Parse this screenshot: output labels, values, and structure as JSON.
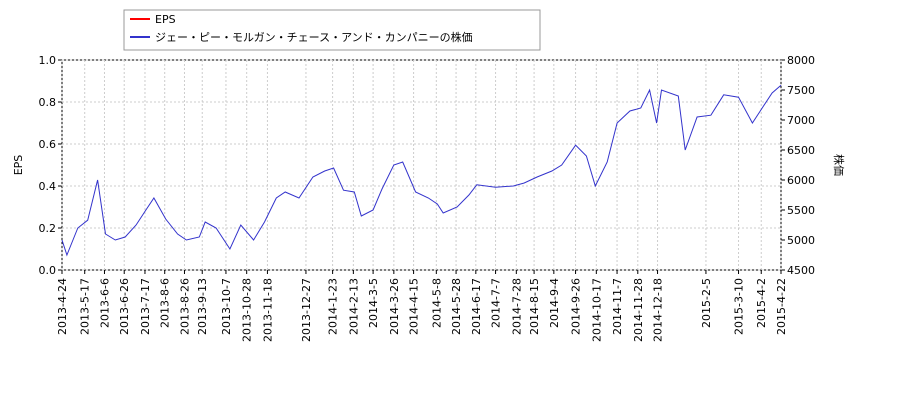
{
  "chart_data": {
    "type": "line",
    "y_label": "EPS",
    "y2_label": "株価",
    "xlim": [
      "2013-4-24",
      "2015-4-22"
    ],
    "xticks": [
      "2013-4-24",
      "2013-5-17",
      "2013-6-6",
      "2013-6-26",
      "2013-7-17",
      "2013-8-6",
      "2013-8-26",
      "2013-9-13",
      "2013-10-7",
      "2013-10-28",
      "2013-11-18",
      "2013-12-27",
      "2014-1-23",
      "2014-2-13",
      "2014-3-5",
      "2014-3-26",
      "2014-4-15",
      "2014-5-8",
      "2014-5-28",
      "2014-6-17",
      "2014-7-7",
      "2014-7-28",
      "2014-8-15",
      "2014-9-4",
      "2014-9-26",
      "2014-10-17",
      "2014-11-7",
      "2014-11-28",
      "2014-12-18",
      "2015-2-5",
      "2015-3-10",
      "2015-4-2",
      "2015-4-22"
    ],
    "ylim": [
      0,
      1
    ],
    "yticks": [
      {
        "value": 0,
        "label": "0.0"
      },
      0.2,
      0.4,
      0.6,
      0.8,
      {
        "value": 1,
        "label": "1.0"
      }
    ],
    "y2lim": [
      4500,
      8000
    ],
    "y2ticks": [
      4500,
      5000,
      5500,
      6000,
      6500,
      7000,
      7500,
      8000
    ],
    "grid": true,
    "x": [
      "2013-04-24",
      "2013-04-29",
      "2013-05-10",
      "2013-05-20",
      "2013-05-30",
      "2013-06-07",
      "2013-06-17",
      "2013-06-27",
      "2013-07-08",
      "2013-07-18",
      "2013-07-26",
      "2013-08-07",
      "2013-08-19",
      "2013-08-28",
      "2013-09-10",
      "2013-09-16",
      "2013-09-27",
      "2013-10-11",
      "2013-10-22",
      "2013-11-04",
      "2013-11-15",
      "2013-11-27",
      "2013-12-06",
      "2013-12-20",
      "2014-01-03",
      "2014-01-15",
      "2014-01-24",
      "2014-02-03",
      "2014-02-14",
      "2014-02-21",
      "2014-03-05",
      "2014-03-14",
      "2014-03-26",
      "2014-04-04",
      "2014-04-17",
      "2014-04-30",
      "2014-05-09",
      "2014-05-15",
      "2014-05-29",
      "2014-06-10",
      "2014-06-18",
      "2014-07-07",
      "2014-07-25",
      "2014-08-05",
      "2014-08-18",
      "2014-09-02",
      "2014-09-12",
      "2014-09-26",
      "2014-10-07",
      "2014-10-16",
      "2014-10-28",
      "2014-11-07",
      "2014-11-20",
      "2014-12-01",
      "2014-12-10",
      "2014-12-17",
      "2014-12-22",
      "2015-01-08",
      "2015-01-15",
      "2015-01-27",
      "2015-02-10",
      "2015-02-23",
      "2015-03-10",
      "2015-03-24",
      "2015-04-03",
      "2015-04-13",
      "2015-04-22"
    ],
    "series": [
      {
        "name": "EPS",
        "color": "#ff0000",
        "axis": "y",
        "values": [
          null,
          null,
          null,
          null,
          null,
          null,
          null,
          null,
          null,
          null,
          null,
          null,
          null,
          null,
          null,
          null,
          null,
          null,
          null,
          null,
          null,
          null,
          null,
          null,
          null,
          null,
          null,
          null,
          null,
          null,
          null,
          null,
          null,
          null,
          null,
          null,
          null,
          null,
          null,
          null,
          null,
          null,
          null,
          null,
          null,
          null,
          null,
          null,
          null,
          null,
          null,
          null,
          null,
          null,
          null,
          null,
          null,
          null,
          null,
          null,
          null,
          null,
          null,
          null,
          null,
          null,
          null
        ]
      },
      {
        "name": "ジェー・ピー・モルガン・チェース・アンド・カンパニーの株価",
        "color": "#3333cc",
        "axis": "y2",
        "values": [
          5000,
          4750,
          5200,
          5330,
          6000,
          5100,
          5000,
          5050,
          5250,
          5500,
          5700,
          5350,
          5100,
          5000,
          5050,
          5300,
          5200,
          4850,
          5250,
          5000,
          5300,
          5700,
          5800,
          5700,
          6050,
          6150,
          6200,
          5830,
          5800,
          5400,
          5500,
          5850,
          6250,
          6300,
          5800,
          5700,
          5600,
          5450,
          5550,
          5750,
          5920,
          5880,
          5900,
          5950,
          6050,
          6150,
          6250,
          6580,
          6400,
          5900,
          6300,
          6950,
          7150,
          7200,
          7500,
          6950,
          7500,
          7400,
          6500,
          7050,
          7080,
          7420,
          7380,
          6950,
          7200,
          7450,
          7580
        ]
      }
    ]
  }
}
